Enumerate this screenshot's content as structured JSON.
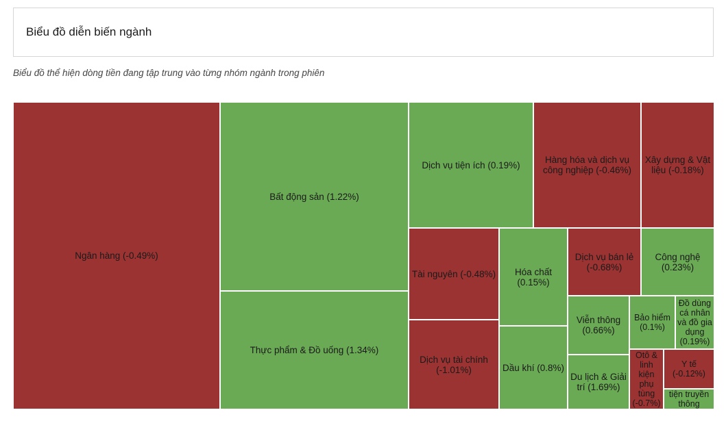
{
  "header": {
    "title": "Biểu đồ diễn biến ngành"
  },
  "subtitle": "Biểu đồ thể hiện dòng tiền đang tập trung vào từng nhóm ngành trong phiên",
  "colors": {
    "positive": "#6aaa55",
    "negative": "#9b3332"
  },
  "chart_data": {
    "type": "treemap",
    "title": "",
    "items": [
      {
        "label": "Ngân hàng (-0.49%)",
        "name": "Ngân hàng",
        "change": -0.49
      },
      {
        "label": "Bất động sản (1.22%)",
        "name": "Bất động sản",
        "change": 1.22
      },
      {
        "label": "Thực phẩm & Đồ uống (1.34%)",
        "name": "Thực phẩm & Đồ uống",
        "change": 1.34
      },
      {
        "label": "Dịch vụ tiện ích (0.19%)",
        "name": "Dịch vụ tiện ích",
        "change": 0.19
      },
      {
        "label": "Hàng hóa và dịch vụ công nghiệp (-0.46%)",
        "name": "Hàng hóa và dịch vụ công nghiệp",
        "change": -0.46
      },
      {
        "label": "Xây dựng & Vật liệu (-0.18%)",
        "name": "Xây dựng & Vật liệu",
        "change": -0.18
      },
      {
        "label": "Tài nguyên (-0.48%)",
        "name": "Tài nguyên",
        "change": -0.48
      },
      {
        "label": "Dịch vụ tài chính (-1.01%)",
        "name": "Dịch vụ tài chính",
        "change": -1.01
      },
      {
        "label": "Hóa chất (0.15%)",
        "name": "Hóa chất",
        "change": 0.15
      },
      {
        "label": "Dầu khí (0.8%)",
        "name": "Dầu khí",
        "change": 0.8
      },
      {
        "label": "Dịch vụ bán lẻ (-0.68%)",
        "name": "Dịch vụ bán lẻ",
        "change": -0.68
      },
      {
        "label": "Công nghệ (0.23%)",
        "name": "Công nghệ",
        "change": 0.23
      },
      {
        "label": "Viễn thông (0.66%)",
        "name": "Viễn thông",
        "change": 0.66
      },
      {
        "label": "Bảo hiểm (0.1%)",
        "name": "Bảo hiểm",
        "change": 0.1
      },
      {
        "label": "Đồ dùng cá nhân và đồ gia dụng (0.19%)",
        "name": "Đồ dùng cá nhân và đồ gia dụng",
        "change": 0.19
      },
      {
        "label": "Du lịch & Giải trí (1.69%)",
        "name": "Du lịch & Giải trí",
        "change": 1.69
      },
      {
        "label": "Otô & linh kiện phụ tùng (-0.7%)",
        "name": "Otô & linh kiện phụ tùng",
        "change": -0.7
      },
      {
        "label": "Y tế (-0.12%)",
        "name": "Y tế",
        "change": -0.12
      },
      {
        "label": "tiện truyền thông",
        "name": "Phương tiện truyền thông",
        "change": null
      }
    ]
  }
}
